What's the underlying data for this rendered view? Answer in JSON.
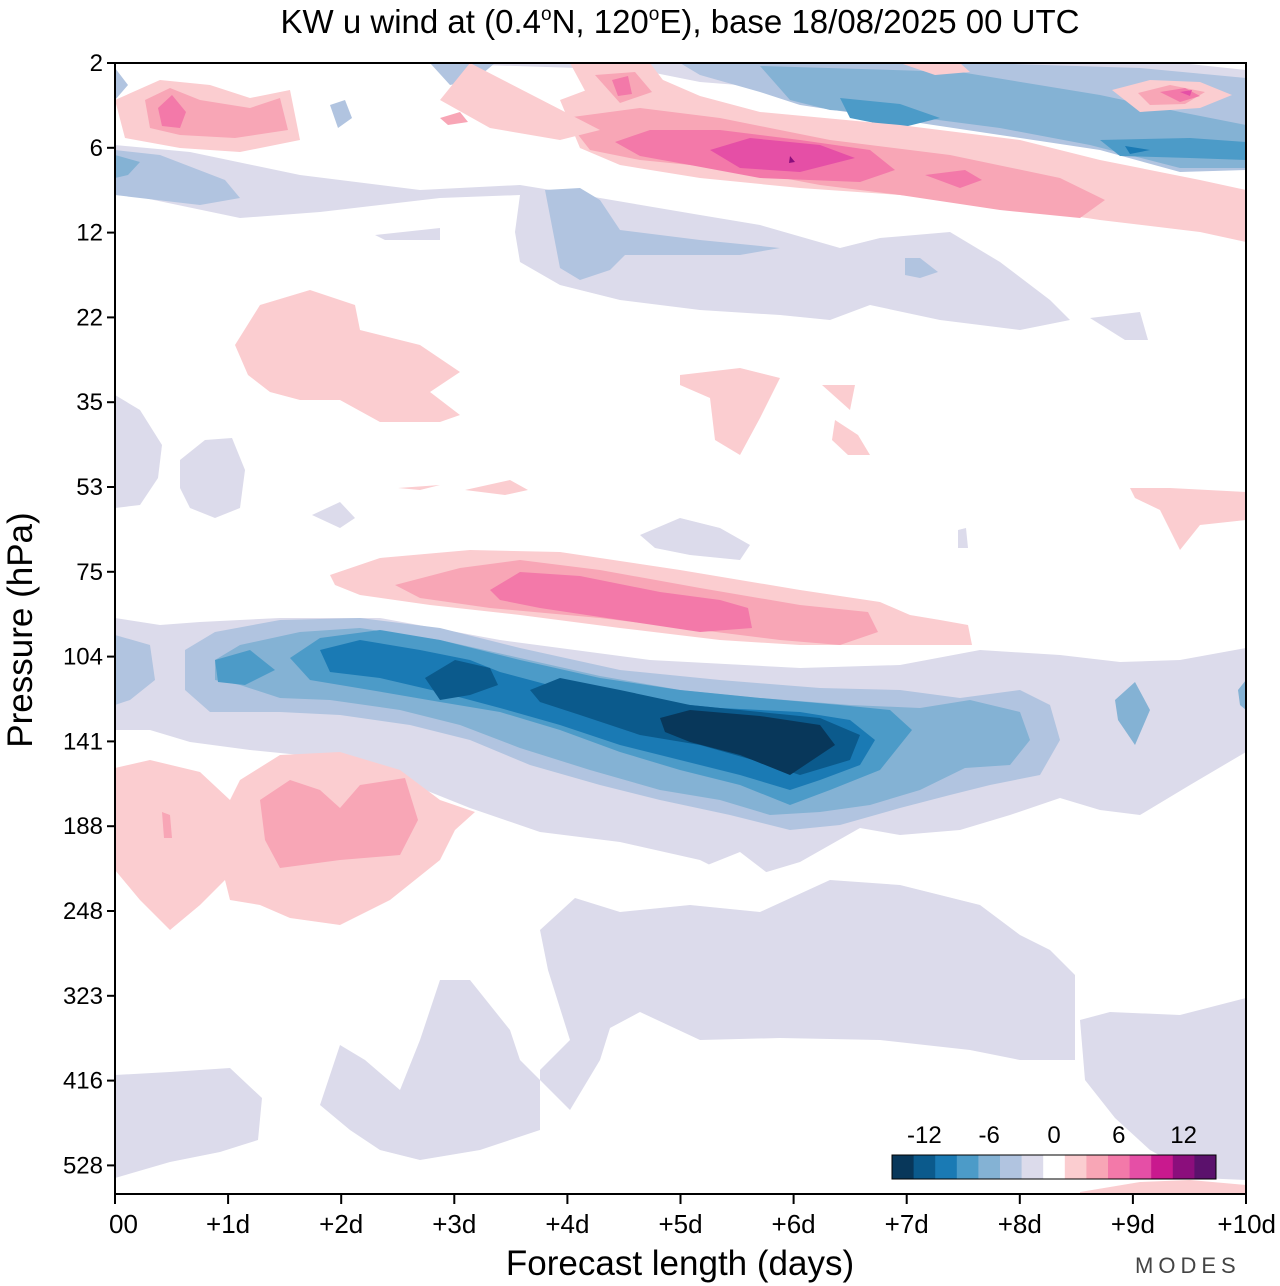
{
  "chart_data": {
    "type": "contour",
    "title": "KW u wind at (0.4°N, 120°E),  base 18/08/2025  00 UTC",
    "title_parts": {
      "prefix": "KW u wind at (0.4",
      "deg1": "o",
      "mid": "N, 120",
      "deg2": "o",
      "suffix": "E),  base 18/08/2025  00 UTC"
    },
    "xlabel": "Forecast length (days)",
    "ylabel": "Pressure (hPa)",
    "x_ticks": [
      "00",
      "+1d",
      "+2d",
      "+3d",
      "+4d",
      "+5d",
      "+6d",
      "+7d",
      "+8d",
      "+9d",
      "+10d"
    ],
    "y_ticks": [
      "2",
      "6",
      "12",
      "22",
      "35",
      "53",
      "75",
      "104",
      "141",
      "188",
      "248",
      "323",
      "416",
      "528"
    ],
    "xlim": [
      0,
      10
    ],
    "y_axis": "pressure levels, top 2 hPa to bottom ~600 hPa (index scale)",
    "colorbar": {
      "levels": [
        -14,
        -12,
        -10,
        -8,
        -6,
        -4,
        -2,
        2,
        4,
        6,
        8,
        10,
        12,
        14
      ],
      "tick_labels": [
        "-12",
        "-6",
        "0",
        "6",
        "12"
      ],
      "tick_values": [
        -12,
        -6,
        0,
        6,
        12
      ],
      "colors": [
        "#08375a",
        "#0b5a8c",
        "#1a7ab4",
        "#4c9bc8",
        "#84b2d4",
        "#b1c4e0",
        "#dcdbeb",
        "#ffffff",
        "#fbcdd0",
        "#f8a6b6",
        "#f379a9",
        "#e54fa6",
        "#c9198e",
        "#8b0e7c",
        "#5b116c"
      ]
    },
    "features": [
      {
        "name": "westerly band 3-6 hPa",
        "sign": "+",
        "x": [
          4.0,
          9.0
        ],
        "p": [
          3,
          9
        ],
        "max_value": 12,
        "peak_day": 6
      },
      {
        "name": "easterly band 2-6 hPa",
        "sign": "-",
        "x": [
          5.0,
          10.0
        ],
        "p": [
          2,
          7
        ],
        "min_value": -10
      },
      {
        "name": "easterly band 8-20 hPa",
        "sign": "-",
        "x": [
          3.5,
          8.5
        ],
        "p": [
          8,
          20
        ],
        "min_value": -4
      },
      {
        "name": "westerly 75-100 hPa",
        "sign": "+",
        "x": [
          2.0,
          7.5
        ],
        "p": [
          70,
          105
        ],
        "max_value": 8
      },
      {
        "name": "easterly 100-190 hPa",
        "sign": "-",
        "x": [
          0.0,
          10.0
        ],
        "p": [
          95,
          200
        ],
        "min_value": -14,
        "peak_day": 6
      },
      {
        "name": "westerly 150-250 hPa",
        "sign": "+",
        "x": [
          0.0,
          3.2
        ],
        "p": [
          140,
          260
        ],
        "max_value": 4
      },
      {
        "name": "weak easterly 250-600 hPa",
        "sign": "-",
        "x": [
          0.0,
          10.0
        ],
        "p": [
          240,
          600
        ],
        "min_value": -2
      }
    ]
  },
  "watermark": "MODES"
}
